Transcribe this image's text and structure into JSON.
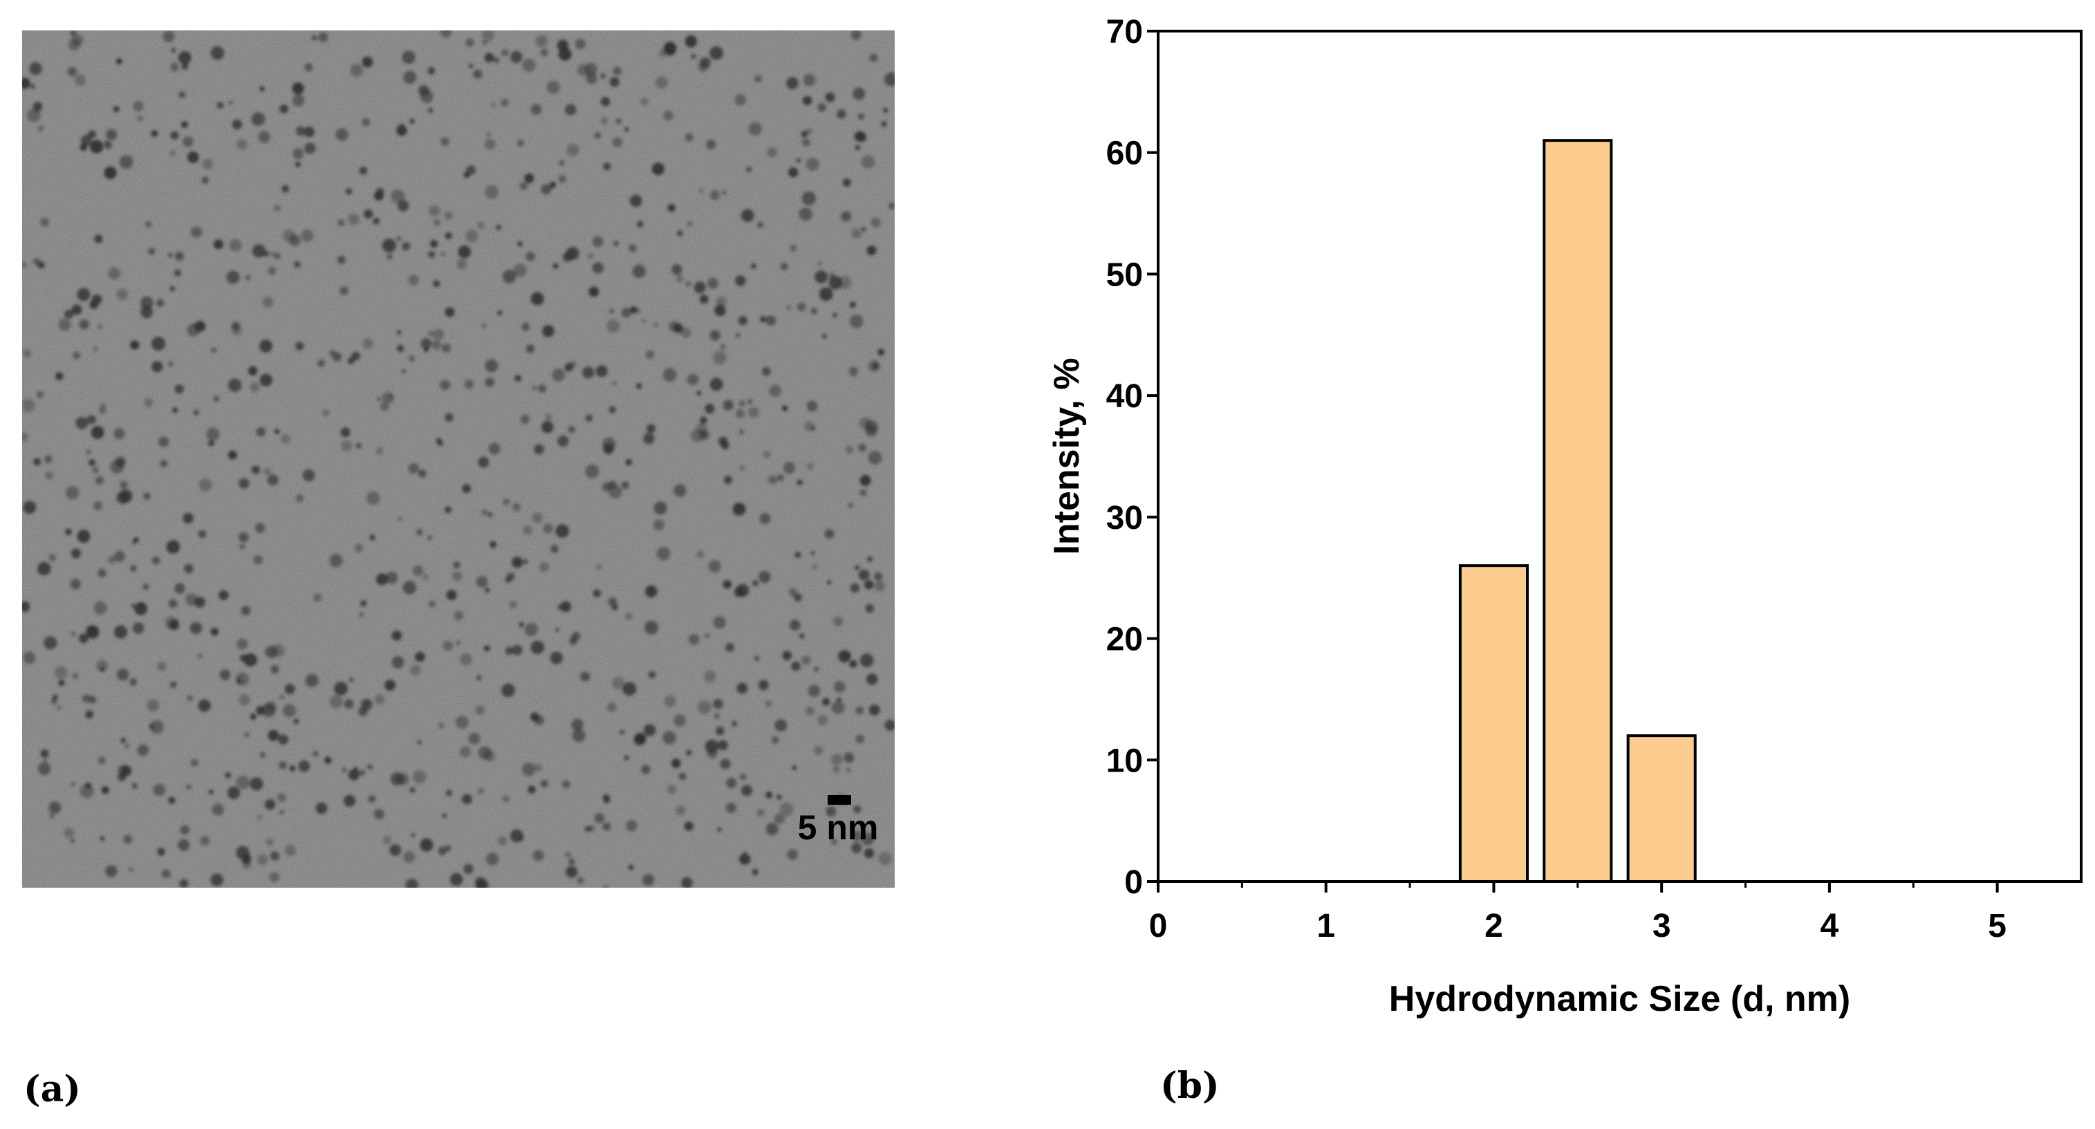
{
  "panel_a": {
    "label": "(a)",
    "scale_bar_label": "5 nm"
  },
  "panel_b": {
    "label": "(b)"
  },
  "colors": {
    "bar_fill": "#FDCC8F",
    "bar_stroke": "#000000",
    "tem_background": "#A8A8A8",
    "particle": "#2E2E2E"
  },
  "chart_data": {
    "type": "bar",
    "title": "",
    "xlabel": "Hydrodynamic Size (d, nm)",
    "ylabel": "Intensity, %",
    "x": [
      2.0,
      2.5,
      3.0
    ],
    "values": [
      26,
      61,
      12
    ],
    "bar_width": 0.4,
    "xlim": [
      0,
      5.5
    ],
    "ylim": [
      0,
      70
    ],
    "xticks": [
      0,
      1,
      2,
      3,
      4,
      5
    ],
    "yticks": [
      0,
      10,
      20,
      30,
      40,
      50,
      60,
      70
    ],
    "grid": false,
    "legend": "none"
  }
}
